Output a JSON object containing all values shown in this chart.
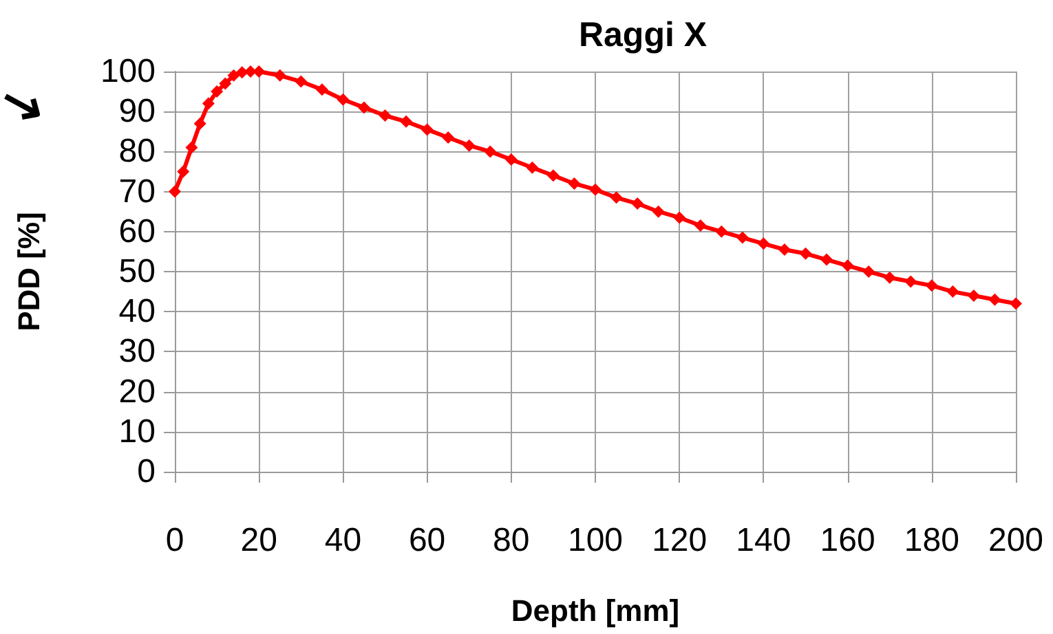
{
  "chart_data": {
    "type": "line",
    "title": "Raggi X",
    "xlabel": "Depth [mm]",
    "ylabel": "PDD [%]",
    "x": [
      0,
      2,
      4,
      6,
      8,
      10,
      12,
      14,
      16,
      18,
      20,
      25,
      30,
      35,
      40,
      45,
      50,
      55,
      60,
      65,
      70,
      75,
      80,
      85,
      90,
      95,
      100,
      105,
      110,
      115,
      120,
      125,
      130,
      135,
      140,
      145,
      150,
      155,
      160,
      165,
      170,
      175,
      180,
      185,
      190,
      195,
      200
    ],
    "series": [
      {
        "color": "#ff0000",
        "values": [
          70,
          75,
          81,
          87,
          92,
          95,
          97,
          99,
          99.8,
          100,
          100,
          99,
          97.5,
          95.5,
          93,
          91,
          89,
          87.5,
          85.5,
          83.5,
          81.5,
          80,
          78,
          76,
          74,
          72,
          70.5,
          68.5,
          67,
          65,
          63.5,
          61.5,
          60,
          58.5,
          57,
          55.5,
          54.5,
          53,
          51.5,
          50,
          48.5,
          47.5,
          46.5,
          45,
          44,
          43,
          42
        ]
      }
    ],
    "xlim": [
      0,
      200
    ],
    "xticks": [
      0,
      20,
      40,
      60,
      80,
      100,
      120,
      140,
      160,
      180,
      200
    ],
    "ylim": [
      0,
      100
    ],
    "yticks": [
      0,
      10,
      20,
      30,
      40,
      50,
      60,
      70,
      80,
      90,
      100
    ],
    "grid": true,
    "marker": "diamond",
    "line_style": "solid"
  }
}
